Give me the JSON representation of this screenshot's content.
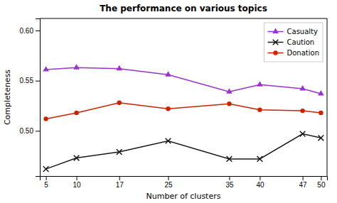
{
  "chart_data": {
    "type": "line",
    "title": "The performance on various topics",
    "xlabel": "Number of clusters",
    "ylabel": "Completeness",
    "x": [
      5,
      10,
      17,
      25,
      35,
      40,
      47,
      50
    ],
    "series": [
      {
        "name": "Casualty",
        "color": "#9933cc",
        "marker": "triangle",
        "values": [
          0.561,
          0.563,
          0.562,
          0.556,
          0.539,
          0.546,
          0.542,
          0.537
        ]
      },
      {
        "name": "Caution",
        "color": "#1a1a1a",
        "marker": "x",
        "values": [
          0.462,
          0.473,
          0.479,
          0.49,
          0.472,
          0.472,
          0.497,
          0.493
        ]
      },
      {
        "name": "Donation",
        "color": "#cc2200",
        "marker": "circle",
        "values": [
          0.512,
          0.518,
          0.528,
          0.522,
          0.527,
          0.521,
          0.52,
          0.518
        ]
      }
    ],
    "xlim": [
      4,
      51
    ],
    "xticks": [
      5,
      10,
      17,
      25,
      35,
      40,
      47,
      50
    ],
    "ylim": [
      0.455,
      0.612
    ],
    "yticks": [
      {
        "value": 0.5,
        "label": "0.50"
      },
      0.55,
      {
        "value": 0.6,
        "label": "0.60"
      }
    ],
    "grid": false,
    "legend": "upper right"
  }
}
